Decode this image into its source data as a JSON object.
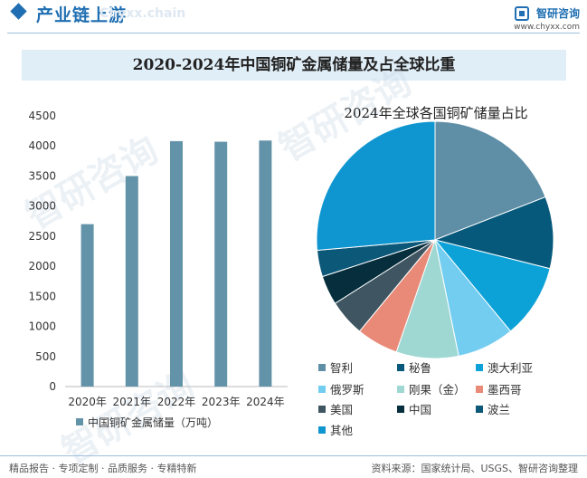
{
  "header": {
    "section_title": "产业链上游",
    "watermark_text": "Chyxx.chain",
    "logo_name": "智研咨询",
    "logo_url": "www.chyxx.com"
  },
  "main_title": "2020-2024年中国铜矿金属储量及占全球比重",
  "chart_data": [
    {
      "type": "bar",
      "categories": [
        "2020年",
        "2021年",
        "2022年",
        "2023年",
        "2024年"
      ],
      "series": [
        {
          "name": "中国铜矿金属储量（万吨）",
          "values": [
            2700,
            3500,
            4080,
            4070,
            4090
          ]
        }
      ],
      "ylim": [
        0,
        4500
      ],
      "yticks": [
        0,
        500,
        1000,
        1500,
        2000,
        2500,
        3000,
        3500,
        4000,
        4500
      ],
      "color": "#6393a8",
      "legend_position": "bottom"
    },
    {
      "type": "pie",
      "title": "2024年全球各国铜矿储量占比",
      "labels": [
        "智利",
        "秘鲁",
        "澳大利亚",
        "俄罗斯",
        "刚果（金）",
        "墨西哥",
        "美国",
        "中国",
        "波兰",
        "其他"
      ],
      "values": [
        19.1,
        9.8,
        10.1,
        7.8,
        8.5,
        5.7,
        5.0,
        4.0,
        3.6,
        26.4
      ],
      "colors": [
        "#5f8fa6",
        "#07597c",
        "#0da2d7",
        "#73cdf1",
        "#9fd8d3",
        "#e88a77",
        "#3f5662",
        "#062e3d",
        "#0c5878",
        "#0f96d1"
      ],
      "legend_position": "bottom"
    }
  ],
  "footer": {
    "slogan": "精品报告 · 专项定制 · 品质服务 · 专精特新",
    "source": "资料来源：国家统计局、USGS、智研咨询整理"
  },
  "watermarks": [
    "智研咨询",
    "智研咨询",
    "智研咨询"
  ]
}
